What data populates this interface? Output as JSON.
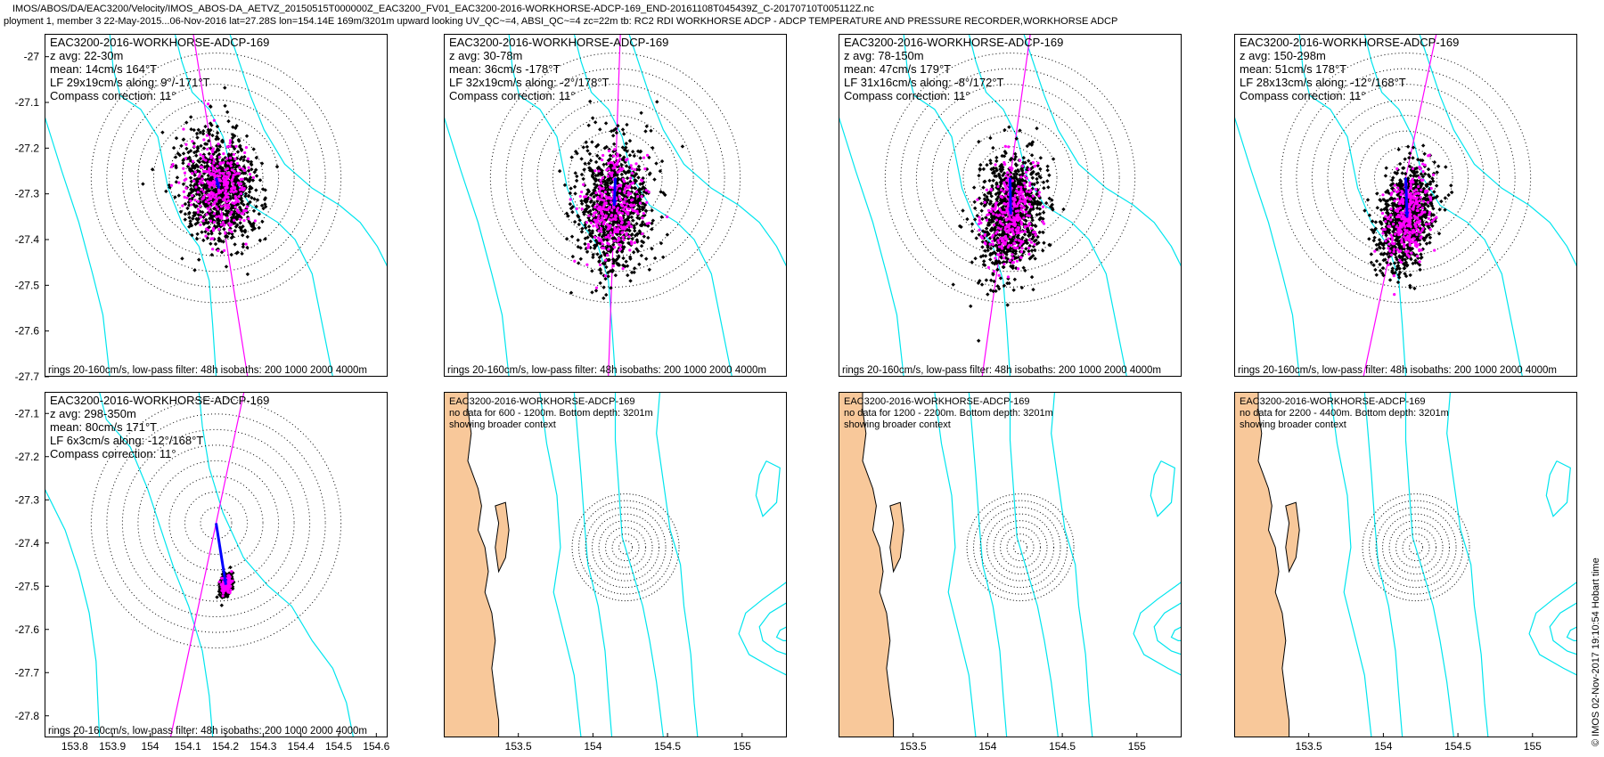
{
  "header": {
    "line1": "IMOS/ABOS/DA/EAC3200/Velocity/IMOS_ABOS-DA_AETVZ_20150515T000000Z_EAC3200_FV01_EAC3200-2016-WORKHORSE-ADCP-169_END-20161108T045439Z_C-20170710T005112Z.nc",
    "line2": "ployment 1, member 3 22-May-2015...06-Nov-2016 lat=27.28S lon=154.14E 169m/3201m upward looking UV_QC~=4, ABSI_QC~=4 zc=22m tb: RC2 RDI WORKHORSE ADCP - ADCP TEMPERATURE AND PRESSURE RECORDER,WORKHORSE ADCP"
  },
  "copyright": "© IMOS 02-Nov-2017 19:10:54 Hobart time",
  "colors": {
    "isobath": "#00e5ee",
    "scatter": "#000000",
    "scatter_lf": "#ff00ff",
    "mean_arrow": "#0000ff",
    "principal_axis": "#ff00ff",
    "land": "#f8c89a",
    "rings": "#000000"
  },
  "chart_data": [
    {
      "type": "scatter",
      "panel": "z1",
      "title": "EAC3200-2016-WORKHORSE-ADCP-169",
      "lines": [
        "z avg: 22-30m",
        "mean: 14cm/s 164°T",
        "LF 29x19cm/s along: 9°/-171°T",
        "Compass correction: 11°"
      ],
      "footer": "rings 20-160cm/s, low-pass filter: 48h isobaths: 200 1000 2000 4000m",
      "yticks": [
        "-27",
        "-27.1",
        "-27.2",
        "-27.3",
        "-27.4",
        "-27.5",
        "-27.6",
        "-27.7"
      ],
      "ylim": [
        -27.7,
        -26.95
      ],
      "mean_speed_cms": 14,
      "mean_dir_degT": 164,
      "lf_major_cms": 29,
      "lf_minor_cms": 19,
      "axis_deg": 9
    },
    {
      "type": "scatter",
      "panel": "z2",
      "title": "EAC3200-2016-WORKHORSE-ADCP-169",
      "lines": [
        "z avg: 30-78m",
        "mean: 36cm/s -178°T",
        "LF 32x19cm/s along: -2°/178°T",
        "Compass correction: 11°"
      ],
      "footer": "rings 20-160cm/s, low-pass filter: 48h isobaths: 200 1000 2000 4000m",
      "mean_speed_cms": 36,
      "mean_dir_degT": -178,
      "lf_major_cms": 32,
      "lf_minor_cms": 19,
      "axis_deg": -2
    },
    {
      "type": "scatter",
      "panel": "z3",
      "title": "EAC3200-2016-WORKHORSE-ADCP-169",
      "lines": [
        "z avg: 78-150m",
        "mean: 47cm/s 179°T",
        "LF 31x16cm/s along: -8°/172°T",
        "Compass correction: 11°"
      ],
      "footer": "rings 20-160cm/s, low-pass filter: 48h isobaths: 200 1000 2000 4000m",
      "mean_speed_cms": 47,
      "mean_dir_degT": 179,
      "lf_major_cms": 31,
      "lf_minor_cms": 16,
      "axis_deg": -8
    },
    {
      "type": "scatter",
      "panel": "z4",
      "title": "EAC3200-2016-WORKHORSE-ADCP-169",
      "lines": [
        "z avg: 150-298m",
        "mean: 51cm/s 178°T",
        "LF 28x13cm/s along: -12°/168°T",
        "Compass correction: 11°"
      ],
      "footer": "rings 20-160cm/s, low-pass filter: 48h isobaths: 200 1000 2000 4000m",
      "mean_speed_cms": 51,
      "mean_dir_degT": 178,
      "lf_major_cms": 28,
      "lf_minor_cms": 13,
      "axis_deg": -12
    },
    {
      "type": "scatter",
      "panel": "z5",
      "title": "EAC3200-2016-WORKHORSE-ADCP-169",
      "lines": [
        "z avg: 298-350m",
        "mean: 80cm/s 171°T",
        "LF 6x3cm/s along: -12°/168°T",
        "Compass correction: 11°"
      ],
      "footer": "rings 20-160cm/s, low-pass filter: 48h isobaths: 200 1000 2000 4000m",
      "yticks": [
        "-27.1",
        "-27.2",
        "-27.3",
        "-27.4",
        "-27.5",
        "-27.6",
        "-27.7",
        "-27.8"
      ],
      "ylim": [
        -27.85,
        -27.05
      ],
      "xticks": [
        "153.8",
        "153.9",
        "154",
        "154.1",
        "154.2",
        "154.3",
        "154.4",
        "154.5",
        "154.6"
      ],
      "xlim": [
        153.72,
        154.63
      ],
      "mean_speed_cms": 80,
      "mean_dir_degT": 171,
      "lf_major_cms": 6,
      "lf_minor_cms": 3,
      "axis_deg": -12
    },
    {
      "type": "map",
      "panel": "ctx1",
      "title": "EAC3200-2016-WORKHORSE-ADCP-169",
      "lines": [
        "no data for 600 - 1200m. Bottom depth: 3201m",
        "showing broader context"
      ],
      "xticks": [
        "153.5",
        "154",
        "154.5",
        "155"
      ],
      "xlim": [
        153.0,
        155.3
      ]
    },
    {
      "type": "map",
      "panel": "ctx2",
      "title": "EAC3200-2016-WORKHORSE-ADCP-169",
      "lines": [
        "no data for 1200 - 2200m. Bottom depth: 3201m",
        "showing broader context"
      ],
      "xticks": [
        "153.5",
        "154",
        "154.5",
        "155"
      ],
      "xlim": [
        153.0,
        155.3
      ]
    },
    {
      "type": "map",
      "panel": "ctx3",
      "title": "EAC3200-2016-WORKHORSE-ADCP-169",
      "lines": [
        "no data for 2200 - 4400m. Bottom depth: 3201m",
        "showing broader context"
      ],
      "xticks": [
        "153.5",
        "154",
        "154.5",
        "155"
      ],
      "xlim": [
        153.0,
        155.3
      ]
    }
  ]
}
